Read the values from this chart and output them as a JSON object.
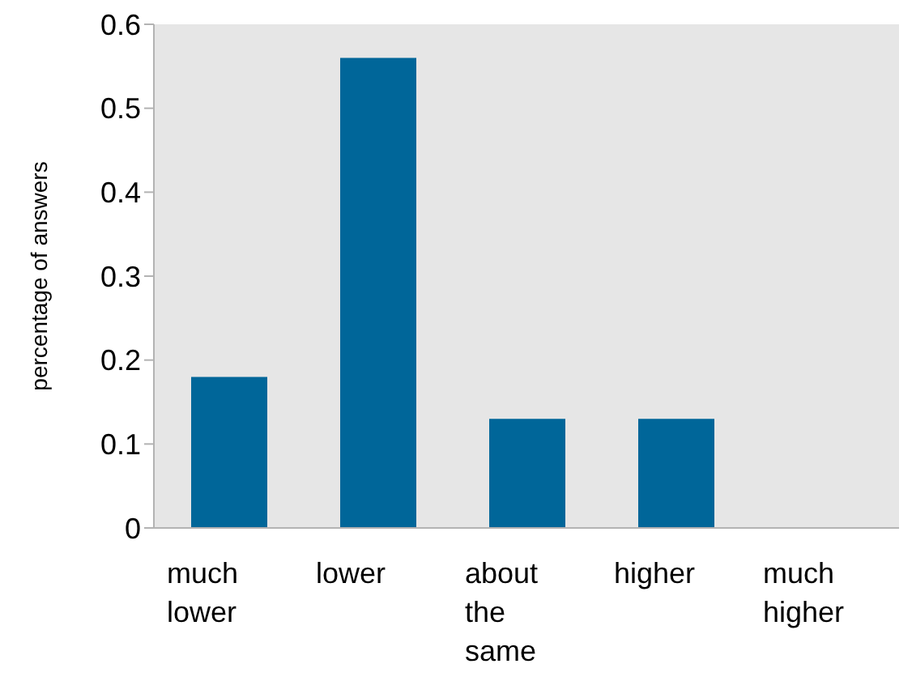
{
  "chart_data": {
    "type": "bar",
    "ylabel": "percentage of answers",
    "categories": [
      "much lower",
      "lower",
      "about the same",
      "higher",
      "much higher"
    ],
    "values": [
      0.18,
      0.56,
      0.13,
      0.13,
      0
    ],
    "color": "#006699",
    "ylim": [
      0,
      0.6
    ],
    "yticks": [
      0,
      0.1,
      0.2,
      0.3,
      0.4,
      0.5,
      0.6
    ],
    "grid": false,
    "legend": false
  }
}
